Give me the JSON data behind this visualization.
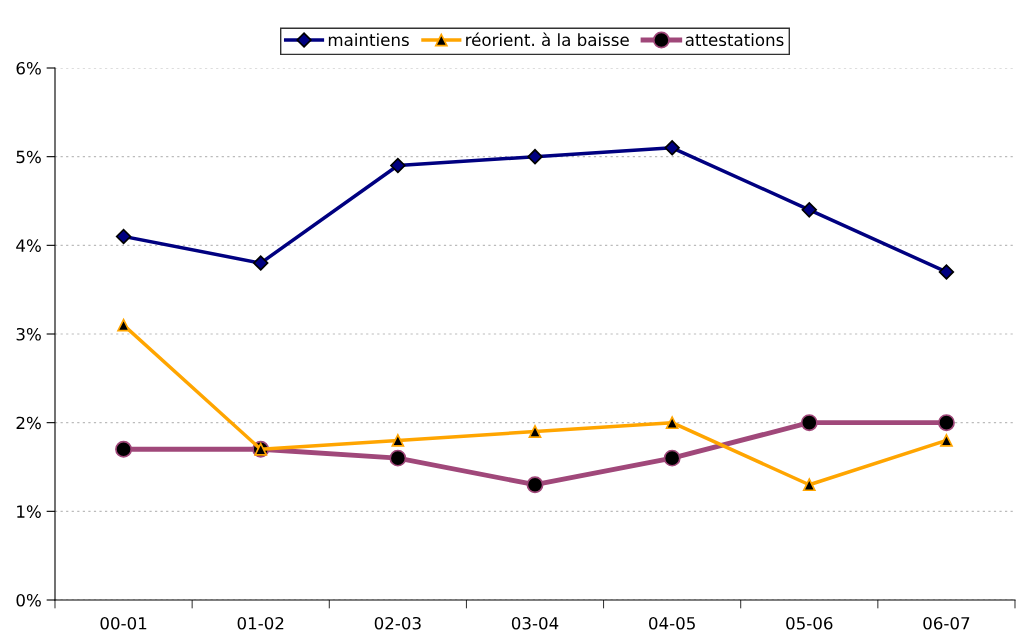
{
  "chart_data": {
    "type": "line",
    "categories": [
      "00-01",
      "01-02",
      "02-03",
      "03-04",
      "04-05",
      "05-06",
      "06-07"
    ],
    "series": [
      {
        "name": "maintiens",
        "color": "#000080",
        "marker": "diamond",
        "values": [
          4.1,
          3.8,
          4.9,
          5.0,
          5.1,
          4.4,
          3.7
        ]
      },
      {
        "name": "réorient. à la baisse",
        "color": "#ffa500",
        "marker": "triangle",
        "values": [
          3.1,
          1.7,
          1.8,
          1.9,
          2.0,
          1.3,
          1.8
        ]
      },
      {
        "name": "attestations",
        "color": "#a0487a",
        "marker": "circle",
        "values": [
          1.7,
          1.7,
          1.6,
          1.3,
          1.6,
          2.0,
          2.0
        ]
      }
    ],
    "ylim": [
      0,
      6
    ],
    "yticks": [
      {
        "value": 0,
        "label": "0%"
      },
      {
        "value": 1,
        "label": "1%"
      },
      {
        "value": 2,
        "label": "2%"
      },
      {
        "value": 3,
        "label": "3%"
      },
      {
        "value": 4,
        "label": "4%"
      },
      {
        "value": 5,
        "label": "5%"
      },
      {
        "value": 6,
        "label": "6%"
      }
    ],
    "grid": "y",
    "legend": "top",
    "line_style": "solid"
  }
}
